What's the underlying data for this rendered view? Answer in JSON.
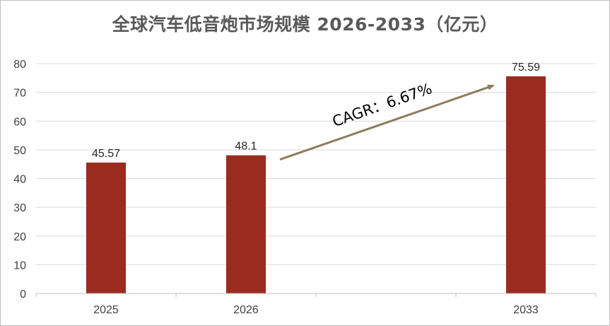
{
  "title": "全球汽车低音炮市场规模 2026-2033（亿元）",
  "chart_data": {
    "type": "bar",
    "title": "全球汽车低音炮市场规模 2026-2033（亿元）",
    "categories": [
      "2025",
      "2026",
      "",
      "2033"
    ],
    "values": [
      45.57,
      48.1,
      null,
      75.59
    ],
    "data_labels": [
      "45.57",
      "48.1",
      "",
      "75.59"
    ],
    "xlabel": "",
    "ylabel": "",
    "ylim": [
      0,
      80
    ],
    "yticks": [
      "0",
      "10",
      "20",
      "30",
      "40",
      "50",
      "60",
      "70",
      "80"
    ],
    "grid": true,
    "legend": "none",
    "bar_color": "#9b2b1f",
    "annotation": {
      "text": "CAGR：6.67%",
      "arrow_color": "#8b7d5c",
      "from_category_index": 1,
      "to_category_index": 3
    }
  }
}
